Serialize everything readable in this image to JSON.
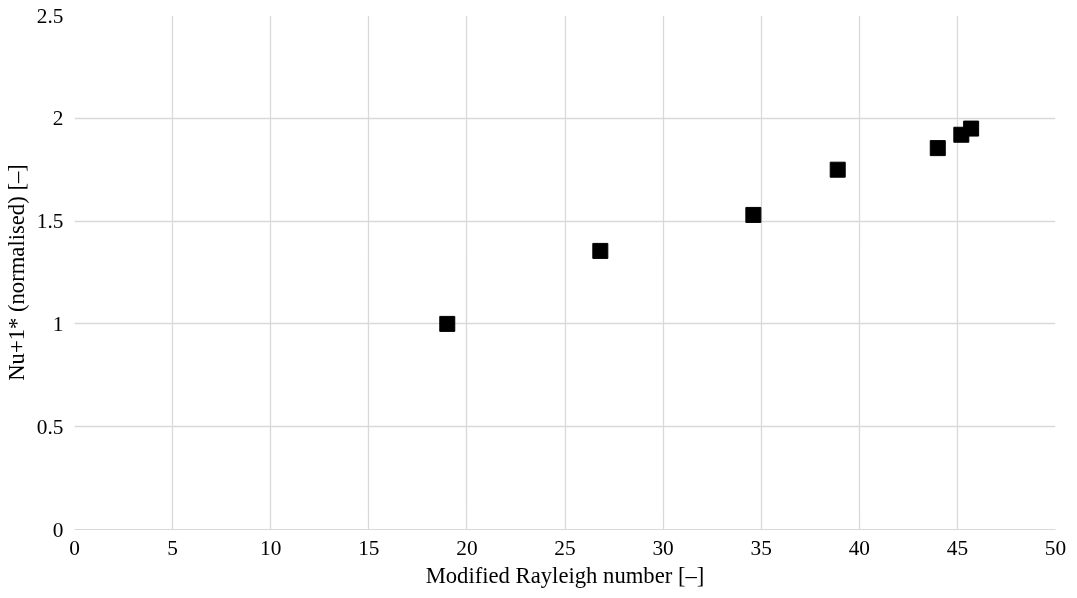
{
  "chart_data": {
    "type": "scatter",
    "xlabel": "Modified Rayleigh number [–]",
    "ylabel": "Nu+1* (normalised) [–]",
    "x": [
      19.0,
      26.8,
      34.6,
      38.9,
      44.0,
      45.2,
      45.7
    ],
    "series": [
      {
        "color": "#000000",
        "values": [
          1.0,
          1.355,
          1.53,
          1.75,
          1.855,
          1.92,
          1.95
        ]
      }
    ],
    "xlim": [
      0,
      50
    ],
    "xticks": [
      0,
      5,
      10,
      15,
      20,
      25,
      30,
      35,
      40,
      45,
      50
    ],
    "ylim": [
      0,
      2.5
    ],
    "yticks": [
      0,
      0.5,
      1,
      1.5,
      2,
      2.5
    ],
    "grid": true,
    "marker": "square"
  }
}
